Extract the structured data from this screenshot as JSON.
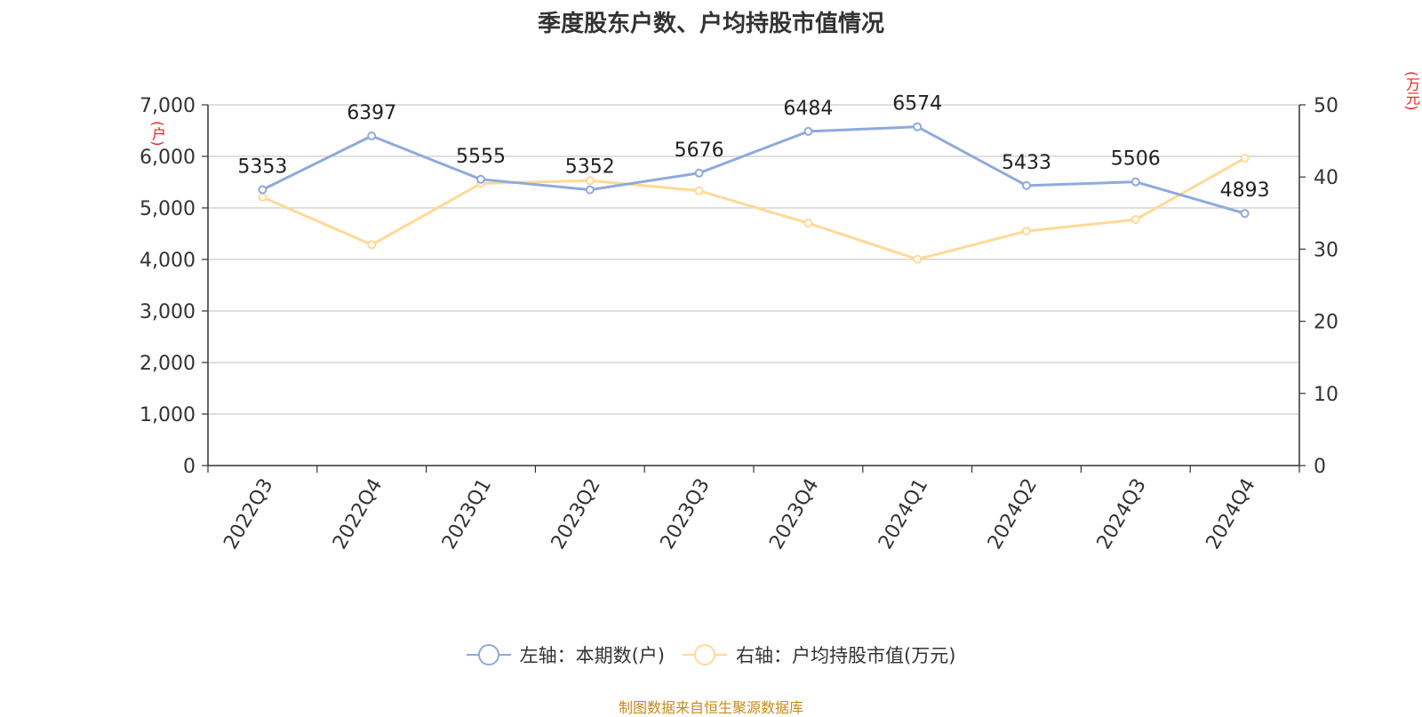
{
  "title": "季度股东户数、户均持股市值情况",
  "left_unit": "(户)",
  "right_unit": "(万元)",
  "source": "制图数据来自恒生聚源数据库",
  "colors": {
    "left_series": "#8faadc",
    "right_series": "#ffd996",
    "unit_text": "#e8211c",
    "source_text": "#c78a1c"
  },
  "legend": [
    {
      "label": "左轴：本期数(户)",
      "color": "#8faadc"
    },
    {
      "label": "右轴：户均持股市值(万元)",
      "color": "#ffd996"
    }
  ],
  "chart_data": {
    "type": "line",
    "categories": [
      "2022Q3",
      "2022Q4",
      "2023Q1",
      "2023Q2",
      "2023Q3",
      "2023Q4",
      "2024Q1",
      "2024Q2",
      "2024Q3",
      "2024Q4"
    ],
    "left_axis": {
      "ylim": [
        0,
        7000
      ],
      "ticks": [
        "0",
        "1,000",
        "2,000",
        "3,000",
        "4,000",
        "5,000",
        "6,000",
        "7,000"
      ],
      "tick_values": [
        0,
        1000,
        2000,
        3000,
        4000,
        5000,
        6000,
        7000
      ]
    },
    "right_axis": {
      "ylim": [
        0,
        50
      ],
      "ticks": [
        "0",
        "10",
        "20",
        "30",
        "40",
        "50"
      ],
      "tick_values": [
        0,
        10,
        20,
        30,
        40,
        50
      ]
    },
    "series": [
      {
        "name": "左轴：本期数(户)",
        "axis": "left",
        "color": "#8faadc",
        "show_labels": true,
        "values": [
          5353,
          6397,
          5555,
          5352,
          5676,
          6484,
          6574,
          5433,
          5506,
          4893
        ]
      },
      {
        "name": "右轴：户均持股市值(万元)",
        "axis": "right",
        "color": "#ffd996",
        "show_labels": false,
        "values": [
          37.2,
          30.6,
          39.1,
          39.5,
          38.1,
          33.6,
          28.6,
          32.5,
          34.1,
          42.6
        ]
      }
    ],
    "grid": true,
    "legend_position": "bottom"
  }
}
